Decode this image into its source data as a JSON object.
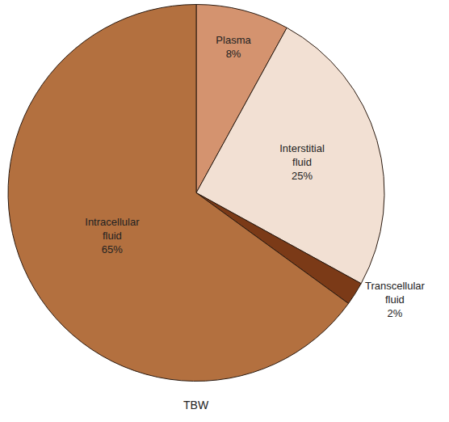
{
  "chart_data": {
    "type": "pie",
    "title": "TBW",
    "categories": [
      "Plasma",
      "Interstitial fluid",
      "Transcellular fluid",
      "Intracellular fluid"
    ],
    "values": [
      8,
      25,
      2,
      65
    ],
    "value_labels": [
      "8%",
      "25%",
      "2%",
      "65%"
    ],
    "colors": [
      "#d4936f",
      "#f2e0d3",
      "#7b3a17",
      "#b3703f"
    ],
    "data_labels": true
  }
}
